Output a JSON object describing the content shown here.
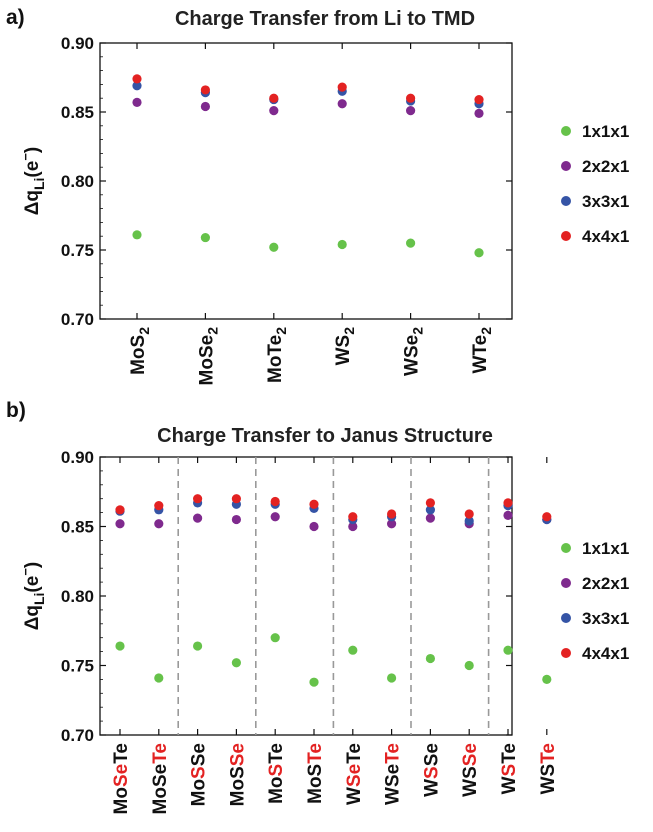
{
  "panels": [
    {
      "panel_label": "a)",
      "chart_data": {
        "type": "scatter",
        "title": "Charge Transfer from Li to TMD",
        "ylabel": "Δq_Li(e⁻)",
        "ylim": [
          0.7,
          0.9
        ],
        "yticks": [
          "0.70",
          "0.75",
          "0.80",
          "0.85",
          "0.90"
        ],
        "grid": false,
        "legend_position": "right",
        "categories": [
          {
            "parts": [
              {
                "t": "MoS",
                "c": "black"
              },
              {
                "t": "2",
                "c": "black",
                "sub": true
              }
            ]
          },
          {
            "parts": [
              {
                "t": "MoSe",
                "c": "black"
              },
              {
                "t": "2",
                "c": "black",
                "sub": true
              }
            ]
          },
          {
            "parts": [
              {
                "t": "MoTe",
                "c": "black"
              },
              {
                "t": "2",
                "c": "black",
                "sub": true
              }
            ]
          },
          {
            "parts": [
              {
                "t": "WS",
                "c": "black"
              },
              {
                "t": "2",
                "c": "black",
                "sub": true
              }
            ]
          },
          {
            "parts": [
              {
                "t": "WSe",
                "c": "black"
              },
              {
                "t": "2",
                "c": "black",
                "sub": true
              }
            ]
          },
          {
            "parts": [
              {
                "t": "WTe",
                "c": "black"
              },
              {
                "t": "2",
                "c": "black",
                "sub": true
              }
            ]
          }
        ],
        "series": [
          {
            "name": "1x1x1",
            "color": "#66c24a",
            "values": [
              0.761,
              0.759,
              0.752,
              0.754,
              0.755,
              0.748
            ]
          },
          {
            "name": "2x2x1",
            "color": "#7f2a8e",
            "values": [
              0.857,
              0.854,
              0.851,
              0.856,
              0.851,
              0.849
            ]
          },
          {
            "name": "3x3x1",
            "color": "#3554a6",
            "values": [
              0.869,
              0.864,
              0.859,
              0.865,
              0.858,
              0.856
            ]
          },
          {
            "name": "4x4x1",
            "color": "#e32222",
            "values": [
              0.874,
              0.866,
              0.86,
              0.868,
              0.86,
              0.859
            ]
          }
        ]
      }
    },
    {
      "panel_label": "b)",
      "chart_data": {
        "type": "scatter",
        "title": "Charge Transfer to Janus Structure",
        "ylabel": "Δq_Li(e⁻)",
        "ylim": [
          0.7,
          0.9
        ],
        "yticks": [
          "0.70",
          "0.75",
          "0.80",
          "0.85",
          "0.90"
        ],
        "grid": false,
        "legend_position": "right",
        "group_separators": "dashed",
        "categories": [
          {
            "parts": [
              {
                "t": "Mo",
                "c": "black"
              },
              {
                "t": "Se",
                "c": "red"
              },
              {
                "t": "Te",
                "c": "black"
              }
            ]
          },
          {
            "parts": [
              {
                "t": "MoSe",
                "c": "black"
              },
              {
                "t": "Te",
                "c": "red"
              }
            ]
          },
          {
            "parts": [
              {
                "t": "Mo",
                "c": "black"
              },
              {
                "t": "S",
                "c": "red"
              },
              {
                "t": "Se",
                "c": "black"
              }
            ]
          },
          {
            "parts": [
              {
                "t": "MoS",
                "c": "black"
              },
              {
                "t": "Se",
                "c": "red"
              }
            ]
          },
          {
            "parts": [
              {
                "t": "Mo",
                "c": "black"
              },
              {
                "t": "S",
                "c": "red"
              },
              {
                "t": "Te",
                "c": "black"
              }
            ]
          },
          {
            "parts": [
              {
                "t": "MoS",
                "c": "black"
              },
              {
                "t": "Te",
                "c": "red"
              }
            ]
          },
          {
            "parts": [
              {
                "t": "W",
                "c": "black"
              },
              {
                "t": "Se",
                "c": "red"
              },
              {
                "t": "Te",
                "c": "black"
              }
            ]
          },
          {
            "parts": [
              {
                "t": "WSe",
                "c": "black"
              },
              {
                "t": "Te",
                "c": "red"
              }
            ]
          },
          {
            "parts": [
              {
                "t": "W",
                "c": "black"
              },
              {
                "t": "S",
                "c": "red"
              },
              {
                "t": "Se",
                "c": "black"
              }
            ]
          },
          {
            "parts": [
              {
                "t": "WS",
                "c": "black"
              },
              {
                "t": "Se",
                "c": "red"
              }
            ]
          },
          {
            "parts": [
              {
                "t": "W",
                "c": "black"
              },
              {
                "t": "S",
                "c": "red"
              },
              {
                "t": "Te",
                "c": "black"
              }
            ]
          },
          {
            "parts": [
              {
                "t": "WS",
                "c": "black"
              },
              {
                "t": "Te",
                "c": "red"
              }
            ]
          }
        ],
        "series": [
          {
            "name": "1x1x1",
            "color": "#66c24a",
            "values": [
              0.764,
              0.741,
              0.764,
              0.752,
              0.77,
              0.738,
              0.761,
              0.741,
              0.755,
              0.75,
              0.761,
              0.74
            ]
          },
          {
            "name": "2x2x1",
            "color": "#7f2a8e",
            "values": [
              0.852,
              0.852,
              0.856,
              0.855,
              0.857,
              0.85,
              0.85,
              0.852,
              0.856,
              0.852,
              0.858,
              0.855
            ]
          },
          {
            "name": "3x3x1",
            "color": "#3554a6",
            "values": [
              0.861,
              0.862,
              0.867,
              0.866,
              0.866,
              0.863,
              0.855,
              0.857,
              0.862,
              0.854,
              0.865,
              0.855
            ]
          },
          {
            "name": "4x4x1",
            "color": "#e32222",
            "values": [
              0.862,
              0.865,
              0.87,
              0.87,
              0.868,
              0.866,
              0.857,
              0.859,
              0.867,
              0.859,
              0.867,
              0.857
            ]
          }
        ]
      }
    }
  ]
}
